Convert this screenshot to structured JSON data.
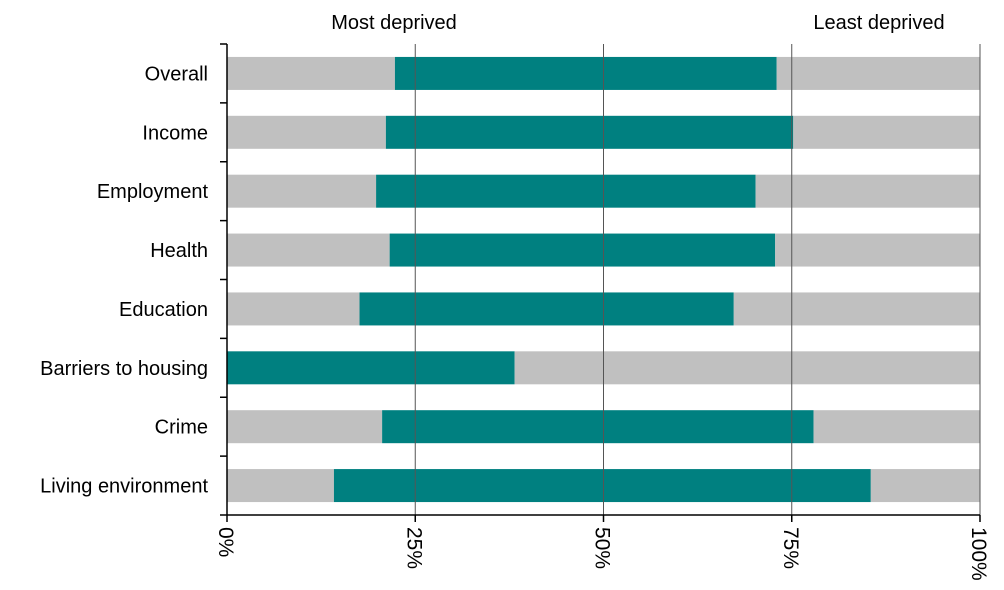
{
  "chart_data": {
    "type": "bar",
    "stacked": true,
    "orientation": "horizontal",
    "title": "",
    "xlabel": "",
    "ylabel": "",
    "annotations": {
      "left": "Most deprived",
      "right": "Least deprived"
    },
    "categories": [
      "Overall",
      "Income",
      "Employment",
      "Health",
      "Education",
      "Barriers to housing",
      "Crime",
      "Living environment"
    ],
    "series": [
      {
        "color": "#c0c0c0",
        "values": [
          22.3,
          21.1,
          19.8,
          21.6,
          17.6,
          0.0,
          20.6,
          14.2
        ]
      },
      {
        "color": "#008080",
        "values": [
          50.7,
          54.1,
          50.4,
          51.2,
          49.7,
          38.2,
          57.3,
          71.3
        ]
      },
      {
        "color": "#c0c0c0",
        "values": [
          27.0,
          24.8,
          29.8,
          27.2,
          32.7,
          61.8,
          22.1,
          14.5
        ]
      }
    ],
    "x_ticks": [
      "0%",
      "25%",
      "50%",
      "75%",
      "100%"
    ],
    "xlim": [
      0,
      100
    ],
    "grid": "vertical"
  }
}
